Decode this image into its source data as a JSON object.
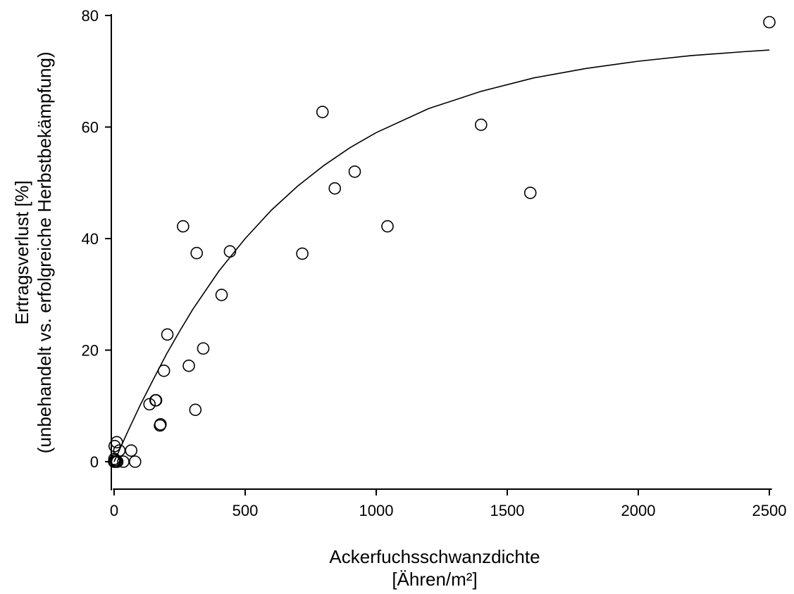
{
  "chart_data": {
    "type": "scatter",
    "title": "",
    "xlabel": [
      "Ackerfuchsschwanzdichte",
      "[Ähren/m²]"
    ],
    "ylabel": [
      "Ertragsverlust [%]",
      "(unbehandelt vs. erfolgreiche Herbstbekämpfung)"
    ],
    "xlim": [
      -10,
      2510
    ],
    "ylim": [
      -5,
      80
    ],
    "xticks": [
      0,
      500,
      1000,
      1500,
      2000,
      2500
    ],
    "yticks": [
      0,
      20,
      40,
      60,
      80
    ],
    "grid": false,
    "legend": "none",
    "points": [
      {
        "x": 0,
        "y": 0
      },
      {
        "x": 1,
        "y": 0.5
      },
      {
        "x": 2,
        "y": 2.8
      },
      {
        "x": 3,
        "y": 0
      },
      {
        "x": 5,
        "y": 0.3
      },
      {
        "x": 8,
        "y": 0
      },
      {
        "x": 10,
        "y": 3.5
      },
      {
        "x": 12,
        "y": 0
      },
      {
        "x": 20,
        "y": 2
      },
      {
        "x": 35,
        "y": 0
      },
      {
        "x": 65,
        "y": 2
      },
      {
        "x": 80,
        "y": 0
      },
      {
        "x": 135,
        "y": 10.3
      },
      {
        "x": 158,
        "y": 11
      },
      {
        "x": 160,
        "y": 11
      },
      {
        "x": 175,
        "y": 6.5
      },
      {
        "x": 177,
        "y": 6.7
      },
      {
        "x": 190,
        "y": 16.3
      },
      {
        "x": 203,
        "y": 22.8
      },
      {
        "x": 263,
        "y": 42.2
      },
      {
        "x": 285,
        "y": 17.2
      },
      {
        "x": 310,
        "y": 9.3
      },
      {
        "x": 315,
        "y": 37.4
      },
      {
        "x": 340,
        "y": 20.3
      },
      {
        "x": 410,
        "y": 29.9
      },
      {
        "x": 442,
        "y": 37.7
      },
      {
        "x": 718,
        "y": 37.3
      },
      {
        "x": 795,
        "y": 62.7
      },
      {
        "x": 842,
        "y": 49
      },
      {
        "x": 918,
        "y": 52
      },
      {
        "x": 1043,
        "y": 42.2
      },
      {
        "x": 1400,
        "y": 60.4
      },
      {
        "x": 1588,
        "y": 48.2
      },
      {
        "x": 2500,
        "y": 78.8
      }
    ],
    "fit_curve": {
      "type": "line",
      "x": [
        0,
        25,
        50,
        100,
        150,
        200,
        250,
        300,
        400,
        500,
        600,
        700,
        800,
        900,
        1000,
        1200,
        1400,
        1600,
        1800,
        2000,
        2200,
        2400,
        2500
      ],
      "y": [
        0,
        2.6,
        5.2,
        10.2,
        14.8,
        19.3,
        23.4,
        27.3,
        34.2,
        40.0,
        45.1,
        49.4,
        53.1,
        56.3,
        59.0,
        63.3,
        66.4,
        68.8,
        70.5,
        71.8,
        72.8,
        73.5,
        73.8
      ]
    }
  }
}
